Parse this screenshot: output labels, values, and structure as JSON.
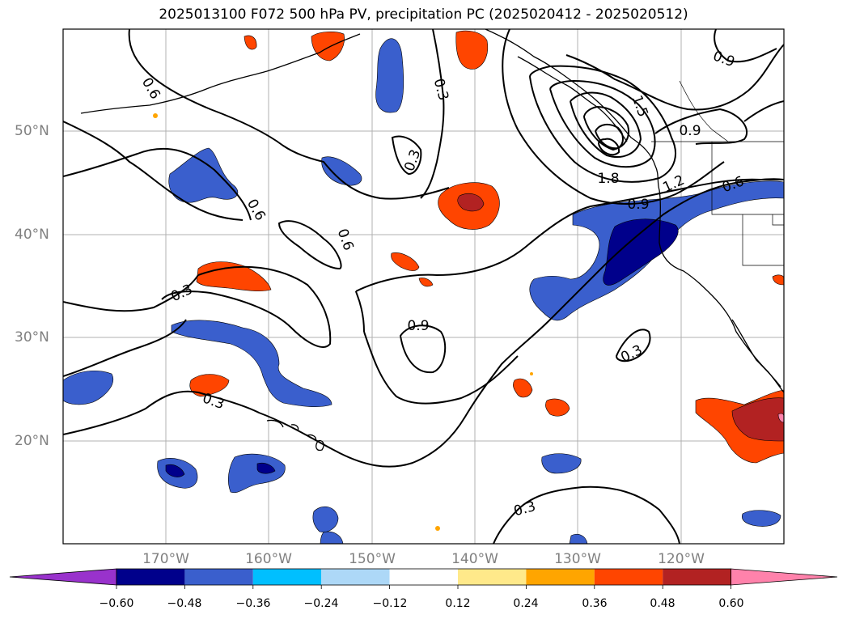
{
  "title": "2025013100 F072 500 hPa PV, precipitation PC (2025020412 - 2025020512)",
  "lat_labels": [
    "50°N",
    "40°N",
    "30°N",
    "20°N"
  ],
  "lon_labels": [
    "170°W",
    "160°W",
    "150°W",
    "140°W",
    "130°W",
    "120°W"
  ],
  "contour_labels": [
    "0.6",
    "0.3",
    "0.3",
    "0.9",
    "1.5",
    "1.8",
    "1.2",
    "0.9",
    "0.6",
    "0.9",
    "0.6",
    "0.6",
    "0.3",
    "0.9",
    "0.3",
    "0.3",
    "0.3"
  ],
  "colorbar": {
    "ticks": [
      "−0.60",
      "−0.48",
      "−0.36",
      "−0.24",
      "−0.12",
      "0.12",
      "0.24",
      "0.36",
      "0.48",
      "0.60"
    ],
    "colors": [
      "#9932cc",
      "#00008b",
      "#3a5fcd",
      "#00bfff",
      "#add8f7",
      "#ffffff",
      "#ffe98a",
      "#ffa500",
      "#ff4500",
      "#b22222",
      "#ff82ab"
    ]
  },
  "colors": {
    "neg_strong": "#00008b",
    "neg_mid": "#3a5fcd",
    "neg_light": "#00bfff",
    "pos_light": "#ffa500",
    "pos_mid": "#ff4500",
    "pos_strong": "#b22222",
    "pos_max": "#ff82ab"
  }
}
